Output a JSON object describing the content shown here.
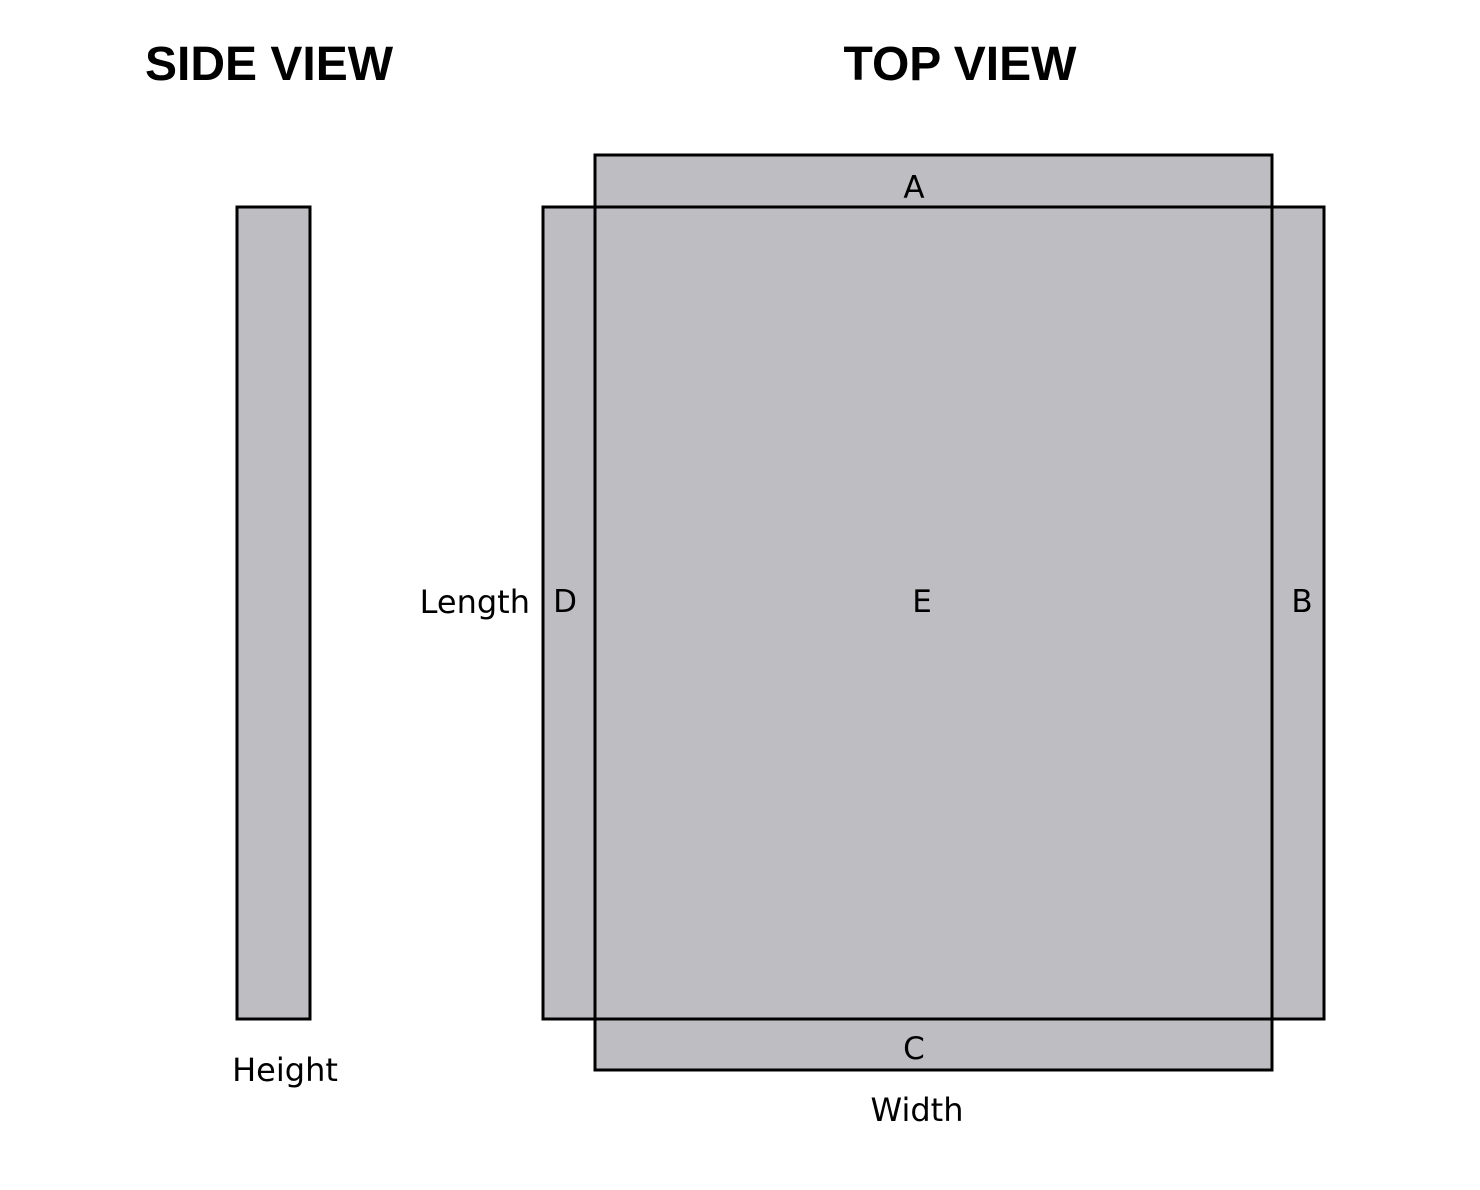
{
  "titles": {
    "side_view": "SIDE VIEW",
    "top_view": "TOP VIEW"
  },
  "side_view": {
    "dimension_label": "Height"
  },
  "top_view": {
    "length_label": "Length",
    "width_label": "Width",
    "panels": {
      "top": "A",
      "right": "B",
      "bottom": "C",
      "left": "D",
      "center": "E"
    }
  },
  "colors": {
    "panel_fill": "#bebdc2",
    "outline": "#000000",
    "background": "#ffffff"
  }
}
